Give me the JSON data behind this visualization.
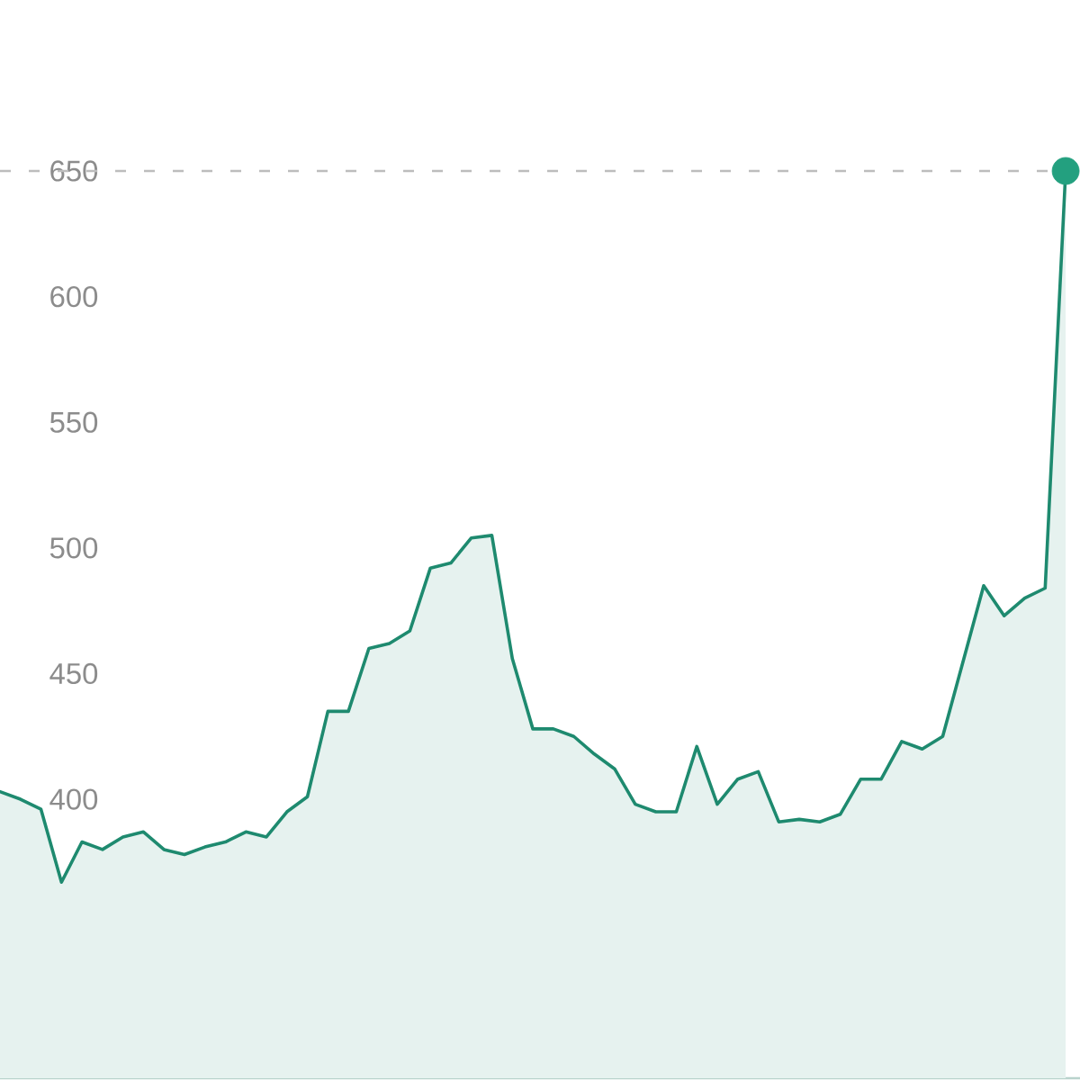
{
  "chart_data": {
    "type": "area",
    "categories": [
      null,
      null,
      null,
      null,
      null,
      null,
      null,
      null,
      null,
      null,
      null,
      null,
      null,
      null,
      null,
      null,
      null,
      null,
      null,
      null,
      null,
      null,
      null,
      null,
      null,
      null,
      null,
      null,
      null,
      null,
      null,
      null,
      null,
      null,
      null,
      null,
      null,
      null,
      null,
      null,
      null,
      null,
      null,
      null,
      null,
      null,
      null,
      null,
      null,
      null,
      null,
      null,
      null
    ],
    "series": [
      {
        "color": "#1e8a6f",
        "values": [
          403,
          400,
          396,
          367,
          383,
          380,
          385,
          387,
          380,
          378,
          381,
          383,
          387,
          385,
          395,
          401,
          435,
          435,
          460,
          462,
          467,
          492,
          494,
          504,
          505,
          456,
          428,
          428,
          425,
          418,
          412,
          398,
          395,
          395,
          421,
          398,
          408,
          411,
          391,
          392,
          391,
          394,
          408,
          408,
          423,
          420,
          425,
          455,
          485,
          473,
          480,
          484,
          650
        ]
      },
      {
        "type": "scatter",
        "color": "#23a07f",
        "marker": "circle",
        "values": [
          null,
          null,
          null,
          null,
          null,
          null,
          null,
          null,
          null,
          null,
          null,
          null,
          null,
          null,
          null,
          null,
          null,
          null,
          null,
          null,
          null,
          null,
          null,
          null,
          null,
          null,
          null,
          null,
          null,
          null,
          null,
          null,
          null,
          null,
          null,
          null,
          null,
          null,
          null,
          null,
          null,
          null,
          null,
          null,
          null,
          null,
          null,
          null,
          null,
          null,
          null,
          null,
          650
        ]
      }
    ],
    "ylim": [
      289,
      650
    ],
    "yticks": [
      400,
      450,
      500,
      550,
      600,
      650
    ],
    "ref_lines": [
      {
        "axis": "y",
        "value": 650,
        "color": "#bdbdbd",
        "line_style": "dashed"
      }
    ],
    "tick_labels": "y"
  }
}
